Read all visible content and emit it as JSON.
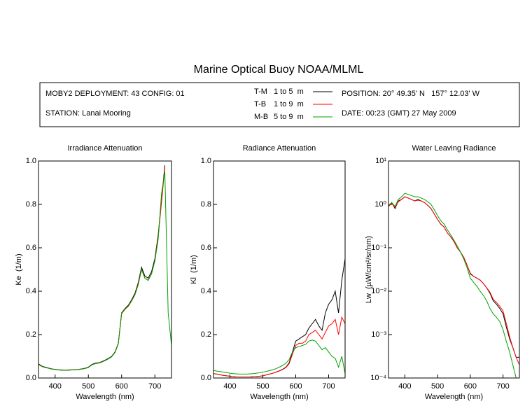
{
  "title": "Marine Optical Buoy NOAA/MLML",
  "header": {
    "deployment": "MOBY2 DEPLOYMENT: 43 CONFIG: 01",
    "station": "STATION: Lanai Mooring",
    "position": "POSITION: 20° 49.35' N   157° 12.03' W",
    "date": "DATE: 00:23 (GMT) 27 May 2009",
    "ranges": [
      "1 to 5  m",
      "1 to 9  m",
      "5 to 9  m"
    ]
  },
  "chart_data": [
    {
      "type": "line",
      "title": "Irradiance Attenuation",
      "x_label": "Wavelength (nm)",
      "y_label": "Ke  (1/m)",
      "xlim": [
        350,
        750
      ],
      "xticks": [
        400,
        500,
        600,
        700
      ],
      "ylim": [
        0,
        1
      ],
      "yticks": [
        {
          "value": 0,
          "label": "0.0"
        },
        0.2,
        0.4,
        0.6,
        0.8,
        {
          "value": 1,
          "label": "1.0"
        }
      ],
      "log_scale": false,
      "x": [
        350,
        360,
        370,
        380,
        390,
        400,
        410,
        420,
        430,
        440,
        450,
        460,
        470,
        480,
        490,
        500,
        510,
        520,
        530,
        540,
        550,
        560,
        570,
        580,
        590,
        600,
        610,
        620,
        630,
        640,
        650,
        660,
        670,
        680,
        690,
        700,
        710,
        720,
        730,
        740,
        750
      ],
      "series": [
        {
          "name": "T-M",
          "color": "#000000",
          "values": [
            0.065,
            0.055,
            0.05,
            0.046,
            0.042,
            0.04,
            0.038,
            0.037,
            0.036,
            0.037,
            0.038,
            0.038,
            0.04,
            0.042,
            0.045,
            0.05,
            0.062,
            0.068,
            0.07,
            0.075,
            0.082,
            0.09,
            0.1,
            0.12,
            0.16,
            0.3,
            0.32,
            0.335,
            0.36,
            0.39,
            0.44,
            0.51,
            0.47,
            0.46,
            0.49,
            0.55,
            0.66,
            0.82,
            0.98,
            null,
            null
          ]
        },
        {
          "name": "T-B",
          "color": "#ff0000",
          "values": [
            0.063,
            0.054,
            0.049,
            0.045,
            0.041,
            0.039,
            0.037,
            0.036,
            0.036,
            0.036,
            0.037,
            0.038,
            0.039,
            0.041,
            0.044,
            0.049,
            0.06,
            0.066,
            0.069,
            0.074,
            0.08,
            0.088,
            0.098,
            0.118,
            0.158,
            0.298,
            0.318,
            0.332,
            0.356,
            0.385,
            0.435,
            0.5,
            0.46,
            0.45,
            0.48,
            0.54,
            0.65,
            0.81,
            0.97,
            null,
            null
          ]
        },
        {
          "name": "M-B",
          "color": "#00a000",
          "values": [
            0.062,
            0.053,
            0.048,
            0.045,
            0.041,
            0.039,
            0.037,
            0.036,
            0.035,
            0.036,
            0.037,
            0.037,
            0.039,
            0.041,
            0.044,
            0.048,
            0.06,
            0.066,
            0.068,
            0.073,
            0.08,
            0.088,
            0.098,
            0.117,
            0.157,
            0.296,
            0.316,
            0.33,
            0.355,
            0.383,
            0.43,
            0.5,
            0.46,
            0.45,
            0.48,
            0.54,
            0.64,
            0.85,
            0.95,
            0.3,
            0.15
          ]
        }
      ]
    },
    {
      "type": "line",
      "title": "Radiance Attenuation",
      "x_label": "Wavelength (nm)",
      "y_label": "Kl  (1/m)",
      "xlim": [
        350,
        750
      ],
      "xticks": [
        400,
        500,
        600,
        700
      ],
      "ylim": [
        0,
        1
      ],
      "yticks": [
        {
          "value": 0,
          "label": "0.0"
        },
        0.2,
        0.4,
        0.6,
        0.8,
        {
          "value": 1,
          "label": "1.0"
        }
      ],
      "log_scale": false,
      "x": [
        350,
        360,
        370,
        380,
        390,
        400,
        410,
        420,
        430,
        440,
        450,
        460,
        470,
        480,
        490,
        500,
        510,
        520,
        530,
        540,
        550,
        560,
        570,
        580,
        590,
        600,
        610,
        620,
        630,
        640,
        650,
        660,
        670,
        680,
        690,
        700,
        710,
        720,
        730,
        740,
        750
      ],
      "series": [
        {
          "name": "T-M",
          "color": "#000000",
          "values": [
            0.02,
            0.018,
            0.015,
            0.012,
            0.01,
            0.008,
            0.006,
            0.005,
            0.005,
            0.005,
            0.005,
            0.005,
            0.006,
            0.007,
            0.008,
            0.01,
            0.014,
            0.018,
            0.022,
            0.027,
            0.033,
            0.04,
            0.05,
            0.07,
            0.12,
            0.17,
            0.18,
            0.19,
            0.2,
            0.23,
            0.25,
            0.27,
            0.24,
            0.22,
            0.3,
            0.34,
            0.36,
            0.4,
            0.3,
            0.45,
            0.55
          ]
        },
        {
          "name": "T-B",
          "color": "#ff0000",
          "values": [
            0.02,
            0.018,
            0.015,
            0.012,
            0.01,
            0.008,
            0.006,
            0.005,
            0.005,
            0.005,
            0.005,
            0.005,
            0.006,
            0.007,
            0.008,
            0.01,
            0.014,
            0.018,
            0.022,
            0.027,
            0.032,
            0.039,
            0.048,
            0.066,
            0.11,
            0.15,
            0.16,
            0.16,
            0.17,
            0.2,
            0.21,
            0.22,
            0.2,
            0.18,
            0.21,
            0.24,
            0.25,
            0.27,
            0.2,
            0.28,
            0.25
          ]
        },
        {
          "name": "M-B",
          "color": "#00a000",
          "values": [
            0.035,
            0.032,
            0.03,
            0.027,
            0.025,
            0.022,
            0.02,
            0.019,
            0.018,
            0.018,
            0.018,
            0.019,
            0.02,
            0.022,
            0.024,
            0.027,
            0.03,
            0.034,
            0.038,
            0.043,
            0.05,
            0.058,
            0.068,
            0.085,
            0.12,
            0.14,
            0.145,
            0.15,
            0.155,
            0.17,
            0.175,
            0.17,
            0.15,
            0.13,
            0.14,
            0.12,
            0.1,
            0.09,
            0.05,
            0.1,
            0.02
          ]
        }
      ]
    },
    {
      "type": "line",
      "title": "Water Leaving Radiance",
      "x_label": "Wavelength (nm)",
      "y_label": "Lw  (µW/cm²/sr/nm)",
      "xlim": [
        350,
        750
      ],
      "xticks": [
        400,
        500,
        600,
        700
      ],
      "ylim": [
        0.0001,
        10
      ],
      "yticks": [
        {
          "value": 10,
          "label": "10¹"
        },
        {
          "value": 1,
          "label": "10⁰"
        },
        {
          "value": 0.1,
          "label": "10⁻¹"
        },
        {
          "value": 0.01,
          "label": "10⁻²"
        },
        {
          "value": 0.001,
          "label": "10⁻³"
        },
        {
          "value": 0.0001,
          "label": "10⁻⁴"
        }
      ],
      "log_scale": true,
      "x": [
        350,
        360,
        370,
        380,
        390,
        400,
        410,
        420,
        430,
        440,
        450,
        460,
        470,
        480,
        490,
        500,
        510,
        520,
        530,
        540,
        550,
        560,
        570,
        580,
        590,
        600,
        610,
        620,
        630,
        640,
        650,
        660,
        670,
        680,
        690,
        700,
        710,
        720,
        730,
        740,
        750
      ],
      "series": [
        {
          "name": "T-M",
          "color": "#000000",
          "values": [
            0.9,
            1.1,
            0.8,
            1.2,
            1.3,
            1.5,
            1.4,
            1.3,
            1.2,
            1.3,
            1.2,
            1.1,
            0.95,
            0.8,
            0.6,
            0.45,
            0.35,
            0.3,
            0.22,
            0.18,
            0.14,
            0.1,
            0.08,
            0.06,
            0.04,
            0.025,
            0.022,
            0.02,
            0.018,
            0.015,
            0.012,
            0.009,
            0.006,
            0.005,
            0.004,
            0.003,
            0.0015,
            0.0008,
            0.0005,
            0.0003,
            0.0003
          ]
        },
        {
          "name": "T-B",
          "color": "#ff0000",
          "values": [
            0.9,
            1.05,
            0.85,
            1.15,
            1.3,
            1.5,
            1.4,
            1.3,
            1.2,
            1.25,
            1.2,
            1.1,
            0.95,
            0.8,
            0.6,
            0.45,
            0.35,
            0.3,
            0.22,
            0.18,
            0.14,
            0.1,
            0.08,
            0.06,
            0.04,
            0.026,
            0.022,
            0.02,
            0.018,
            0.015,
            0.012,
            0.0095,
            0.0065,
            0.0055,
            0.0045,
            0.0035,
            0.0018,
            0.0009,
            0.0005,
            0.0003,
            0.0002
          ]
        },
        {
          "name": "M-B",
          "color": "#00a000",
          "values": [
            0.95,
            1.1,
            0.9,
            1.3,
            1.5,
            1.8,
            1.7,
            1.6,
            1.5,
            1.5,
            1.4,
            1.3,
            1.15,
            1.0,
            0.75,
            0.55,
            0.42,
            0.35,
            0.26,
            0.2,
            0.15,
            0.11,
            0.08,
            0.055,
            0.035,
            0.02,
            0.016,
            0.013,
            0.01,
            0.008,
            0.006,
            0.004,
            0.003,
            0.0025,
            0.002,
            0.0013,
            0.0007,
            0.0004,
            0.0002,
            0.0001,
            0.0001
          ]
        }
      ]
    }
  ]
}
